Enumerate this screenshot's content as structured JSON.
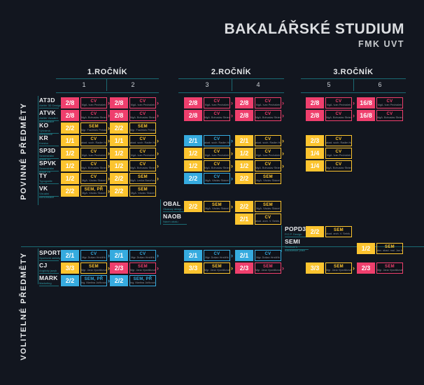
{
  "title": {
    "main": "BAKALÁŘSKÉ STUDIUM",
    "sub": "FMK UVT"
  },
  "colors": {
    "background": "#12161f",
    "pink": "#ef3f6d",
    "yellow": "#fcc42f",
    "blue": "#36abdf",
    "teal_line": "#1b6b74",
    "teal_text": "#2f98a2",
    "heading": "#dcdee1",
    "muted": "#8f949c"
  },
  "years": [
    {
      "label": "1.ROČNÍK",
      "semesters": [
        "1",
        "2"
      ]
    },
    {
      "label": "2.ROČNÍK",
      "semesters": [
        "3",
        "4"
      ]
    },
    {
      "label": "3.ROČNÍK",
      "semesters": [
        "5",
        "6"
      ]
    }
  ],
  "sections": [
    {
      "label": "POVINNÉ PŘEDMĚTY"
    },
    {
      "label": "VOLITELNÉ PŘEDMĚTY"
    }
  ],
  "rows": [
    {
      "code": "AT3D",
      "sub": "Ateliér 3D Design",
      "section": 0,
      "cells": [
        {
          "sem": 1,
          "ratio": "2/8",
          "type": "CV",
          "lecturer": "MgA. Ivan Pecháček",
          "color": "pink"
        },
        {
          "sem": 2,
          "ratio": "2/8",
          "type": "CV",
          "lecturer": "MgA. Ivan Pecháček",
          "color": "pink"
        },
        {
          "sem": 3,
          "ratio": "2/8",
          "type": "CV",
          "lecturer": "MgA. Ivan Pecháček",
          "color": "pink"
        },
        {
          "sem": 4,
          "ratio": "2/8",
          "type": "CV",
          "lecturer": "MgA. Ivan Pecháček",
          "color": "pink"
        },
        {
          "sem": 5,
          "ratio": "2/8",
          "type": "CV",
          "lecturer": "MgA. Ivan Pecháček",
          "color": "pink"
        },
        {
          "sem": 6,
          "ratio": "16/8",
          "type": "CV",
          "lecturer": "MgA. Ivan Pecháček",
          "color": "pink"
        }
      ]
    },
    {
      "code": "ATVK",
      "sub": "Ateliér Vizuální komunikace",
      "section": 0,
      "cells": [
        {
          "sem": 1,
          "ratio": "2/8",
          "type": "CV",
          "lecturer": "MgA. Bohuslav Stránský",
          "color": "pink"
        },
        {
          "sem": 2,
          "ratio": "2/8",
          "type": "CV",
          "lecturer": "MgA. Bohuslav Stránský",
          "color": "pink"
        },
        {
          "sem": 3,
          "ratio": "2/8",
          "type": "CV",
          "lecturer": "MgA. Bohuslav Stránský",
          "color": "pink"
        },
        {
          "sem": 4,
          "ratio": "2/8",
          "type": "CV",
          "lecturer": "MgA. Bohuslav Stránský",
          "color": "pink"
        },
        {
          "sem": 5,
          "ratio": "2/8",
          "type": "CV",
          "lecturer": "MgA. Bohuslav Stránský",
          "color": "pink"
        },
        {
          "sem": 6,
          "ratio": "16/8",
          "type": "CV",
          "lecturer": "MgA. Bohuslav Stránský",
          "color": "pink"
        }
      ]
    },
    {
      "code": "KO",
      "sub": "Výtvarná kompozice",
      "section": 0,
      "cells": [
        {
          "sem": 1,
          "ratio": "2/2",
          "type": "SEM",
          "lecturer": "Mgr. František Petrák",
          "color": "yellow"
        },
        {
          "sem": 2,
          "ratio": "2/2",
          "type": "SEM",
          "lecturer": "Mgr. František Petrák",
          "color": "yellow"
        }
      ]
    },
    {
      "code": "KR",
      "sub": "Kresba",
      "section": 0,
      "cells": [
        {
          "sem": 1,
          "ratio": "1/1",
          "type": "CV",
          "lecturer": "akad. soch. Radim Hanke",
          "color": "yellow"
        },
        {
          "sem": 2,
          "ratio": "1/1",
          "type": "CV",
          "lecturer": "akad. soch. Radim Hanke",
          "color": "yellow"
        },
        {
          "sem": 3,
          "ratio": "2/1",
          "type": "CV",
          "lecturer": "akad. soch. Radim Hanke",
          "color": "blue"
        },
        {
          "sem": 4,
          "ratio": "2/1",
          "type": "CV",
          "lecturer": "akad. soch. Radim Hanke",
          "color": "yellow"
        },
        {
          "sem": 5,
          "ratio": "2/3",
          "type": "CV",
          "lecturer": "akad. soch. Radim Hanke",
          "color": "yellow"
        }
      ]
    },
    {
      "code": "SP3D",
      "sub": "Semestrální práce 3D",
      "section": 0,
      "cells": [
        {
          "sem": 1,
          "ratio": "1/2",
          "type": "CV",
          "lecturer": "MgA. Ivan Pecháček",
          "color": "yellow"
        },
        {
          "sem": 2,
          "ratio": "1/2",
          "type": "CV",
          "lecturer": "MgA. Ivan Pecháček",
          "color": "yellow"
        },
        {
          "sem": 3,
          "ratio": "1/2",
          "type": "CV",
          "lecturer": "MgA. Ivan Pecháček",
          "color": "yellow"
        },
        {
          "sem": 4,
          "ratio": "1/2",
          "type": "CV",
          "lecturer": "MgA. Ivan Pecháček",
          "color": "yellow"
        },
        {
          "sem": 5,
          "ratio": "1/4",
          "type": "CV",
          "lecturer": "MgA. Ivan Pecháček",
          "color": "yellow"
        }
      ]
    },
    {
      "code": "SPVK",
      "sub": "Semestrální práce VK",
      "section": 0,
      "cells": [
        {
          "sem": 1,
          "ratio": "1/2",
          "type": "CV",
          "lecturer": "MgA. Bohuslav Stránský",
          "color": "yellow"
        },
        {
          "sem": 2,
          "ratio": "1/2",
          "type": "CV",
          "lecturer": "MgA. Bohuslav Stránský",
          "color": "yellow"
        },
        {
          "sem": 3,
          "ratio": "1/2",
          "type": "CV",
          "lecturer": "MgA. Bohuslav Stránský",
          "color": "yellow"
        },
        {
          "sem": 4,
          "ratio": "1/2",
          "type": "CV",
          "lecturer": "MgA. Bohuslav Stránský",
          "color": "yellow"
        },
        {
          "sem": 5,
          "ratio": "1/4",
          "type": "CV",
          "lecturer": "MgA. Bohuslav Stránský",
          "color": "yellow"
        }
      ]
    },
    {
      "code": "TY",
      "sub": "Typografie",
      "section": 0,
      "cells": [
        {
          "sem": 1,
          "ratio": "1/2",
          "type": "CV",
          "lecturer": "MgA. Václav Skácel",
          "color": "yellow"
        },
        {
          "sem": 2,
          "ratio": "2/2",
          "type": "SEM",
          "lecturer": "MgA. Lenka Baroňová",
          "color": "yellow"
        },
        {
          "sem": 3,
          "ratio": "2/2",
          "type": "CV",
          "lecturer": "MgA. Václav Skácel",
          "color": "blue"
        },
        {
          "sem": 4,
          "ratio": "2/2",
          "type": "SEM",
          "lecturer": "MgA. Václav Skácel",
          "color": "yellow"
        }
      ]
    },
    {
      "code": "VK",
      "sub": "Vizuální komunikace",
      "section": 0,
      "cells": [
        {
          "sem": 1,
          "ratio": "2/2",
          "type": "SEM, PŘ",
          "lecturer": "MgA. Václav Skácel",
          "color": "yellow"
        },
        {
          "sem": 2,
          "ratio": "2/2",
          "type": "SEM",
          "lecturer": "MgA. Václav Skácel",
          "color": "yellow"
        }
      ]
    },
    {
      "code": "OBAL",
      "sub": "Obalový design",
      "section": 0,
      "cells": [
        {
          "sem": 3,
          "ratio": "2/2",
          "type": "SEM",
          "lecturer": "MgA. Václav Skácel",
          "color": "yellow"
        },
        {
          "sem": 4,
          "ratio": "2/2",
          "type": "SEM",
          "lecturer": "MgA. Václav Skácel",
          "color": "yellow"
        }
      ]
    },
    {
      "code": "NAOB",
      "sub": "Návrh obalu",
      "section": 0,
      "cells": [
        {
          "sem": 4,
          "ratio": "2/1",
          "type": "CV",
          "lecturer": "akad. arch. V. Sebík, Ph.D.",
          "color": "yellow"
        }
      ]
    },
    {
      "code": "POPD3D",
      "sub": "P.O.P. Design",
      "section": 0,
      "cells": [
        {
          "sem": 5,
          "ratio": "2/2",
          "type": "SEM",
          "lecturer": "akad. arch. V. Sebík, Ph.D.",
          "color": "yellow"
        }
      ]
    },
    {
      "code": "SEMI",
      "sub": "Seminář k bakalářské práci",
      "section": 0,
      "cells": [
        {
          "sem": 6,
          "ratio": "1/2",
          "type": "SEM",
          "lecturer": "doc. akad. mal. Jan Meisner",
          "color": "yellow"
        }
      ]
    },
    {
      "code": "SPORT",
      "sub": "Sportovní aktivity",
      "section": 1,
      "cells": [
        {
          "sem": 1,
          "ratio": "2/1",
          "type": "CV",
          "lecturer": "Mgr. Dušan Hrnčiřík",
          "color": "blue"
        },
        {
          "sem": 2,
          "ratio": "2/1",
          "type": "CV",
          "lecturer": "Mgr. Dušan Hrnčiřík",
          "color": "blue"
        },
        {
          "sem": 3,
          "ratio": "2/1",
          "type": "CV",
          "lecturer": "Mgr. Dušan Hrnčiřík",
          "color": "blue"
        },
        {
          "sem": 4,
          "ratio": "2/1",
          "type": "CV",
          "lecturer": "Mgr. Dušan Hrnčiřík",
          "color": "blue"
        }
      ]
    },
    {
      "code": "CJ",
      "sub": "Anglický jazyk",
      "section": 1,
      "cells": [
        {
          "sem": 1,
          "ratio": "3/3",
          "type": "SEM",
          "lecturer": "Mgr. Jana Vyorálková, Mgr. Jana Hrubá",
          "color": "yellow"
        },
        {
          "sem": 2,
          "ratio": "2/3",
          "type": "SEM",
          "lecturer": "Mgr. Jana Vyorálková, Mgr. Jana Hrubá",
          "color": "pink"
        },
        {
          "sem": 3,
          "ratio": "3/3",
          "type": "SEM",
          "lecturer": "Mgr. Jana Vyorálková, Mgr. Jana Hrubá",
          "color": "yellow"
        },
        {
          "sem": 4,
          "ratio": "2/3",
          "type": "SEM",
          "lecturer": "Mgr. Jana Vyorálková, Mgr. Jana Hrubá",
          "color": "pink"
        },
        {
          "sem": 5,
          "ratio": "3/3",
          "type": "SEM",
          "lecturer": "Mgr. Jana Vyorálková, Mgr. Jana Hrubá",
          "color": "yellow"
        },
        {
          "sem": 6,
          "ratio": "2/3",
          "type": "SEM",
          "lecturer": "Mgr. Jana Vyorálková, Mgr. Jana Hrubá",
          "color": "pink"
        }
      ]
    },
    {
      "code": "MARK",
      "sub": "Marketing",
      "section": 1,
      "cells": [
        {
          "sem": 1,
          "ratio": "2/2",
          "type": "SEM, PŘ",
          "lecturer": "Ing. Martina Juříková, Ph.D.",
          "color": "blue"
        },
        {
          "sem": 2,
          "ratio": "2/2",
          "type": "SEM, PŘ",
          "lecturer": "Ing. Martina Juříková, Ph.D.",
          "color": "blue"
        }
      ]
    }
  ]
}
